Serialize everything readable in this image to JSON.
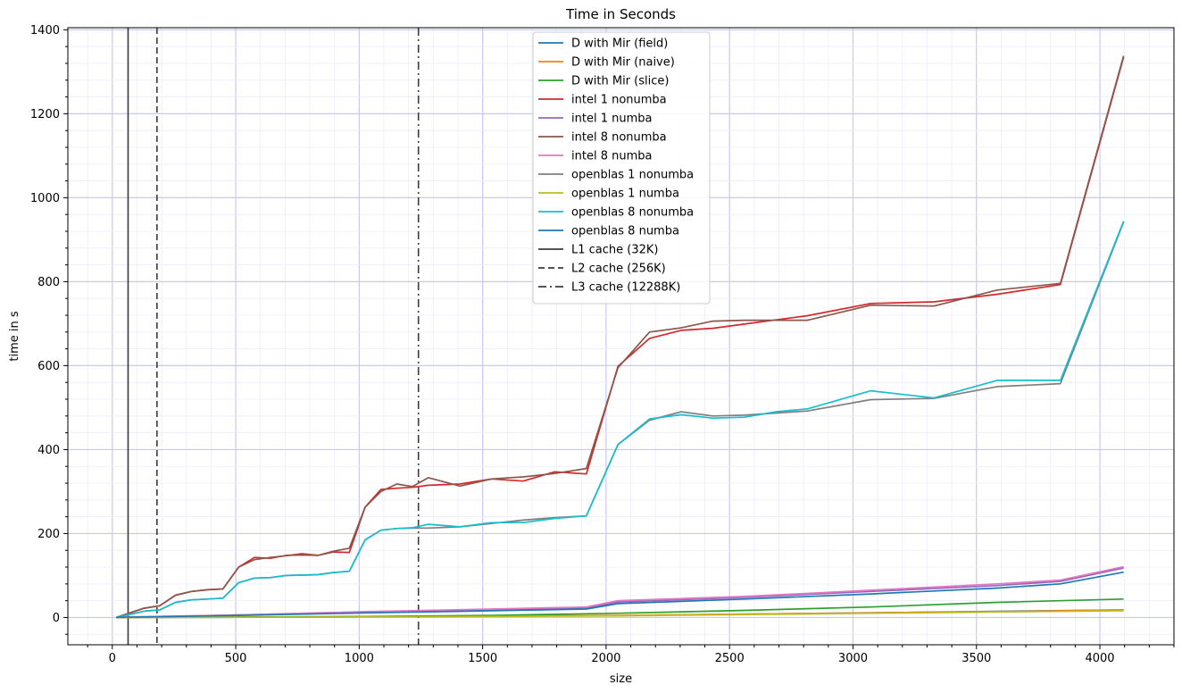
{
  "chart_data": {
    "type": "line",
    "title": "Time in Seconds",
    "xlabel": "size",
    "ylabel": "time in s",
    "xlim": [
      -180,
      4300
    ],
    "ylim": [
      -65,
      1405
    ],
    "xticks": [
      0,
      500,
      1000,
      1500,
      2000,
      2500,
      3000,
      3500,
      4000
    ],
    "yticks": [
      0,
      200,
      400,
      600,
      800,
      1000,
      1200,
      1400
    ],
    "grid": true,
    "legend_position": "top-center",
    "series": [
      {
        "name": "D with Mir (field)",
        "color": "#1f77b4",
        "dash": "solid",
        "x": [
          16,
          512,
          1024,
          2048,
          4096
        ],
        "y": [
          0.1,
          0.6,
          1.5,
          4.5,
          18
        ]
      },
      {
        "name": "D with Mir (naive)",
        "color": "#ff7f0e",
        "dash": "solid",
        "x": [
          16,
          512,
          1024,
          2048,
          2560,
          3072,
          3584,
          4096
        ],
        "y": [
          0.2,
          0.8,
          2,
          5,
          8,
          11,
          14,
          18
        ]
      },
      {
        "name": "D with Mir (slice)",
        "color": "#2ca02c",
        "dash": "solid",
        "x": [
          16,
          512,
          1024,
          1536,
          2048,
          2560,
          3072,
          3584,
          4096
        ],
        "y": [
          0.2,
          1,
          2.5,
          5,
          10,
          17,
          25,
          36,
          44
        ]
      },
      {
        "name": "intel 1 nonumba",
        "color": "#d62728",
        "dash": "solid",
        "x": [
          16,
          128,
          192,
          256,
          320,
          384,
          448,
          512,
          576,
          640,
          704,
          768,
          832,
          896,
          960,
          1024,
          1088,
          1152,
          1216,
          1280,
          1408,
          1536,
          1664,
          1792,
          1920,
          2048,
          2176,
          2304,
          2432,
          2560,
          2688,
          2816,
          3072,
          3328,
          3584,
          3840,
          4096
        ],
        "y": [
          0,
          22,
          28,
          53,
          62,
          66,
          68,
          120,
          143,
          141,
          148,
          149,
          148,
          156,
          155,
          263,
          305,
          308,
          310,
          315,
          318,
          330,
          325,
          347,
          342,
          598,
          665,
          684,
          689,
          699,
          709,
          719,
          748,
          752,
          770,
          793,
          1335
        ]
      },
      {
        "name": "intel 1 numba",
        "color": "#9467bd",
        "dash": "solid",
        "x": [
          16,
          512,
          1024,
          1536,
          1920,
          2048,
          2560,
          3072,
          3584,
          3840,
          4096
        ],
        "y": [
          0.5,
          6,
          13,
          18,
          22,
          37,
          48,
          62,
          76,
          86,
          118
        ]
      },
      {
        "name": "intel 8 nonumba",
        "color": "#8c564b",
        "dash": "solid",
        "x": [
          16,
          128,
          192,
          256,
          320,
          384,
          448,
          512,
          576,
          640,
          704,
          768,
          832,
          896,
          960,
          1024,
          1088,
          1152,
          1216,
          1280,
          1408,
          1536,
          1664,
          1792,
          1920,
          2048,
          2176,
          2304,
          2432,
          2560,
          2688,
          2816,
          3072,
          3328,
          3584,
          3840,
          4096
        ],
        "y": [
          0,
          22,
          28,
          53,
          62,
          66,
          68,
          120,
          138,
          143,
          147,
          152,
          148,
          158,
          165,
          263,
          300,
          318,
          312,
          333,
          313,
          330,
          335,
          343,
          355,
          595,
          680,
          690,
          706,
          708,
          708,
          708,
          744,
          742,
          780,
          796,
          1338
        ]
      },
      {
        "name": "intel 8 numba",
        "color": "#e377c2",
        "dash": "solid",
        "x": [
          16,
          512,
          1024,
          1536,
          1920,
          2048,
          2560,
          3072,
          3584,
          3840,
          4096
        ],
        "y": [
          0.5,
          6,
          14,
          20,
          25,
          40,
          50,
          65,
          80,
          89,
          121
        ]
      },
      {
        "name": "openblas 1 nonumba",
        "color": "#7f7f7f",
        "dash": "solid",
        "x": [
          16,
          128,
          192,
          256,
          320,
          384,
          448,
          512,
          576,
          640,
          704,
          768,
          832,
          896,
          960,
          1024,
          1088,
          1152,
          1216,
          1280,
          1408,
          1536,
          1664,
          1792,
          1920,
          2048,
          2176,
          2304,
          2432,
          2560,
          2688,
          2816,
          3072,
          3328,
          3584,
          3840,
          4096
        ],
        "y": [
          0,
          15,
          18,
          36,
          42,
          44,
          46,
          83,
          94,
          95,
          100,
          101,
          102,
          107,
          110,
          185,
          208,
          212,
          213,
          213,
          216,
          224,
          232,
          238,
          242,
          412,
          470,
          490,
          480,
          482,
          487,
          492,
          519,
          522,
          550,
          557,
          942
        ]
      },
      {
        "name": "openblas 1 numba",
        "color": "#bcbd22",
        "dash": "solid",
        "x": [
          16,
          512,
          1024,
          2048,
          4096
        ],
        "y": [
          0.1,
          0.5,
          1.2,
          4,
          16
        ]
      },
      {
        "name": "openblas 8 nonumba",
        "color": "#17becf",
        "dash": "solid",
        "x": [
          16,
          128,
          192,
          256,
          320,
          384,
          448,
          512,
          576,
          640,
          704,
          768,
          832,
          896,
          960,
          1024,
          1088,
          1152,
          1216,
          1280,
          1408,
          1536,
          1664,
          1792,
          1920,
          2048,
          2176,
          2304,
          2432,
          2560,
          2688,
          2816,
          3072,
          3328,
          3584,
          3840,
          4096
        ],
        "y": [
          0,
          15,
          18,
          36,
          42,
          44,
          46,
          83,
          94,
          95,
          100,
          101,
          102,
          107,
          110,
          185,
          208,
          212,
          214,
          222,
          216,
          226,
          226,
          236,
          242,
          412,
          473,
          483,
          475,
          477,
          490,
          497,
          540,
          523,
          565,
          565,
          944
        ]
      },
      {
        "name": "openblas 8 numba",
        "color": "#1f77b4",
        "dash": "solid",
        "x": [
          16,
          512,
          1024,
          1536,
          1920,
          2048,
          2560,
          3072,
          3584,
          3840,
          4096
        ],
        "y": [
          0.3,
          5,
          11,
          16,
          20,
          33,
          44,
          56,
          70,
          80,
          108
        ]
      }
    ],
    "vlines": [
      {
        "name": "L1 cache (32K)",
        "x": 64,
        "color": "#3b3b3b",
        "dash": "solid"
      },
      {
        "name": "L2 cache (256K)",
        "x": 181,
        "color": "#3b3b3b",
        "dash": "dashed"
      },
      {
        "name": "L3 cache (12288K)",
        "x": 1240,
        "color": "#3b3b3b",
        "dash": "dashdot"
      }
    ]
  }
}
